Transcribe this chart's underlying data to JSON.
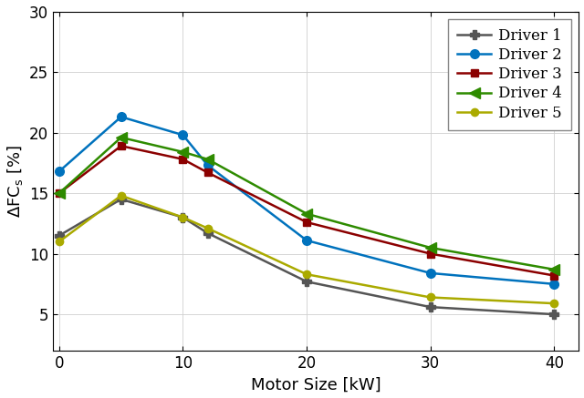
{
  "x": [
    0,
    5,
    10,
    12,
    20,
    30,
    40
  ],
  "driver1": [
    11.5,
    14.5,
    13.0,
    11.7,
    7.7,
    5.6,
    5.0
  ],
  "driver2": [
    16.8,
    21.3,
    19.8,
    17.3,
    11.1,
    8.4,
    7.5
  ],
  "driver3": [
    15.0,
    18.9,
    17.8,
    16.7,
    12.6,
    10.0,
    8.2
  ],
  "driver4": [
    15.0,
    19.6,
    18.4,
    17.8,
    13.3,
    10.5,
    8.7
  ],
  "driver5": [
    11.0,
    14.8,
    13.0,
    12.1,
    8.3,
    6.4,
    5.9
  ],
  "colors": {
    "driver1": "#555555",
    "driver2": "#0072BD",
    "driver3": "#8B0000",
    "driver4": "#2E8B00",
    "driver5": "#AAAA00"
  },
  "markers": {
    "driver1": "P",
    "driver2": "o",
    "driver3": "s",
    "driver4": "<",
    "driver5": "o"
  },
  "markersizes": {
    "driver1": 7,
    "driver2": 7,
    "driver3": 6,
    "driver4": 8,
    "driver5": 6
  },
  "labels": {
    "driver1": "Driver 1",
    "driver2": "Driver 2",
    "driver3": "Driver 3",
    "driver4": "Driver 4",
    "driver5": "Driver 5"
  },
  "xlabel": "Motor Size [kW]",
  "ylim": [
    2,
    30
  ],
  "xlim": [
    -0.5,
    42
  ],
  "yticks": [
    5,
    10,
    15,
    20,
    25,
    30
  ],
  "xticks": [
    0,
    10,
    20,
    30,
    40
  ],
  "linewidth": 1.8,
  "title": ""
}
